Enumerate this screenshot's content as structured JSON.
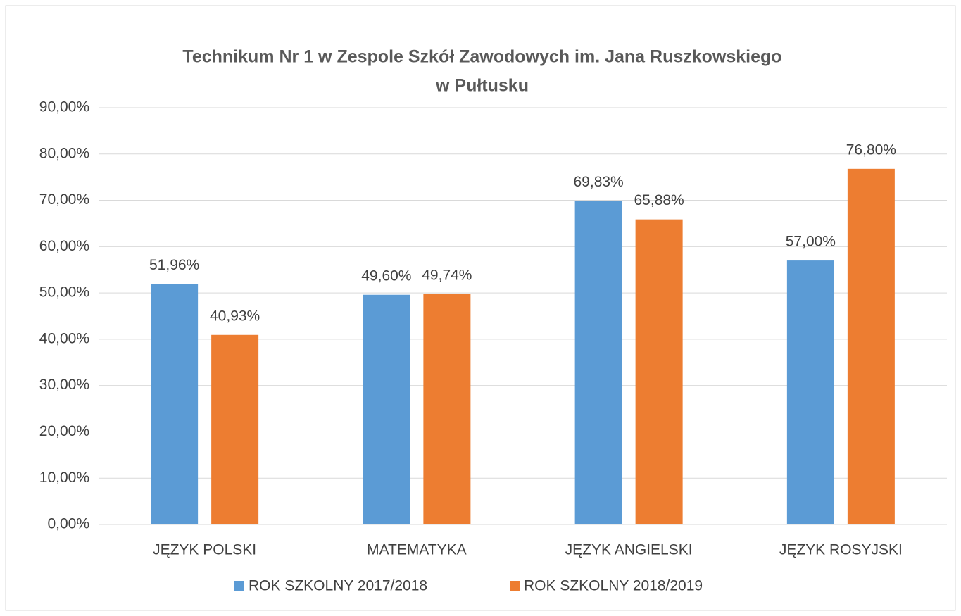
{
  "chart_data": {
    "type": "bar",
    "title": [
      "Technikum Nr 1 w Zespole Szkół Zawodowych im. Jana Ruszkowskiego",
      "w Pułtusku"
    ],
    "categories": [
      "JĘZYK POLSKI",
      "MATEMATYKA",
      "JĘZYK ANGIELSKI",
      "JĘZYK ROSYJSKI"
    ],
    "series": [
      {
        "name": "ROK SZKOLNY 2017/2018",
        "color": "#5b9bd5",
        "values": [
          51.96,
          49.6,
          69.83,
          57.0
        ],
        "value_labels": [
          "51,96%",
          "49,60%",
          "69,83%",
          "57,00%"
        ]
      },
      {
        "name": "ROK SZKOLNY 2018/2019",
        "color": "#ed7d31",
        "values": [
          40.93,
          49.74,
          65.88,
          76.8
        ],
        "value_labels": [
          "40,93%",
          "49,74%",
          "65,88%",
          "76,80%"
        ]
      }
    ],
    "ylim": [
      0,
      90
    ],
    "yticks": [
      {
        "value": 0,
        "label": "0,00%"
      },
      {
        "value": 10,
        "label": "10,00%"
      },
      {
        "value": 20,
        "label": "20,00%"
      },
      {
        "value": 30,
        "label": "30,00%"
      },
      {
        "value": 40,
        "label": "40,00%"
      },
      {
        "value": 50,
        "label": "50,00%"
      },
      {
        "value": 60,
        "label": "60,00%"
      },
      {
        "value": 70,
        "label": "70,00%"
      },
      {
        "value": 80,
        "label": "80,00%"
      },
      {
        "value": 90,
        "label": "90,00%"
      }
    ],
    "grid": true,
    "legend": "bottom"
  }
}
